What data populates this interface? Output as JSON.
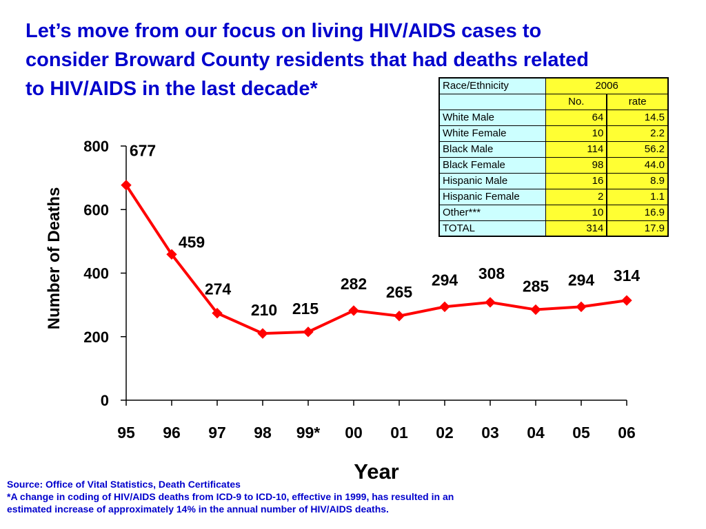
{
  "title_lines": [
    "Let’s move from our focus on living HIV/AIDS cases to",
    "consider Broward County residents that had deaths related",
    "to HIV/AIDS in the last decade*"
  ],
  "colors": {
    "title": "#0000cc",
    "series": "#ff0000",
    "table_label_bg": "#ccffff",
    "table_value_bg": "#ffff33"
  },
  "chart_data": {
    "type": "line",
    "xlabel": "Year",
    "ylabel": "Number of Deaths",
    "categories": [
      "95",
      "96",
      "97",
      "98",
      "99*",
      "00",
      "01",
      "02",
      "03",
      "04",
      "05",
      "06"
    ],
    "values": [
      677,
      459,
      274,
      210,
      215,
      282,
      265,
      294,
      308,
      285,
      294,
      314
    ],
    "data_labels": [
      "677",
      "459",
      "274",
      "210",
      "215",
      "282",
      "265",
      "294",
      "308",
      "285",
      "294",
      "314"
    ],
    "ylim": [
      0,
      800
    ],
    "yticks": [
      0,
      200,
      400,
      600,
      800
    ],
    "ytick_labels": [
      "0",
      "200",
      "400",
      "600",
      "800"
    ],
    "grid": false,
    "marker": "diamond"
  },
  "table": {
    "header_label": "Race/Ethnicity",
    "year": "2006",
    "col_no": "No.",
    "col_rate": "rate",
    "rows": [
      {
        "label": "White Male",
        "no": "64",
        "rate": "14.5"
      },
      {
        "label": "White Female",
        "no": "10",
        "rate": "2.2"
      },
      {
        "label": "Black Male",
        "no": "114",
        "rate": "56.2"
      },
      {
        "label": "Black Female",
        "no": "98",
        "rate": "44.0"
      },
      {
        "label": "Hispanic Male",
        "no": "16",
        "rate": "8.9"
      },
      {
        "label": "Hispanic Female",
        "no": "2",
        "rate": "1.1"
      },
      {
        "label": "Other***",
        "no": "10",
        "rate": "16.9"
      },
      {
        "label": "TOTAL",
        "no": "314",
        "rate": "17.9"
      }
    ]
  },
  "footnotes": [
    "Source: Office of Vital Statistics, Death Certificates",
    "*A change in coding of HIV/AIDS deaths from ICD-9 to ICD-10, effective in 1999, has resulted in an",
    "estimated increase of approximately 14% in the annual number of HIV/AIDS deaths."
  ]
}
